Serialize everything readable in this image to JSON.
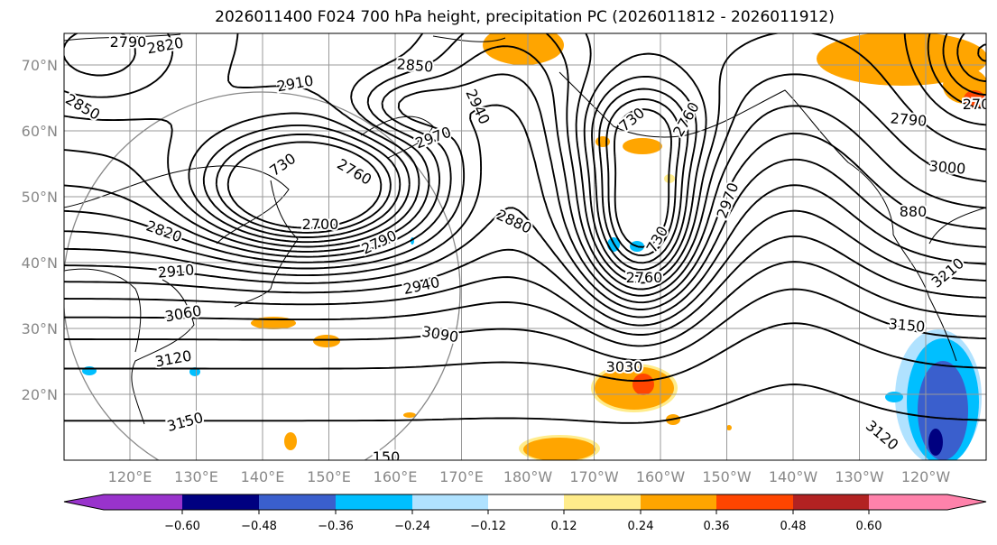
{
  "title": "2026011400 F024 700 hPa height, precipitation PC (2026011812 - 2026011912)",
  "lat_labels": [
    "70°N",
    "60°N",
    "50°N",
    "40°N",
    "30°N",
    "20°N"
  ],
  "lon_labels": [
    "120°E",
    "130°E",
    "140°E",
    "150°E",
    "160°E",
    "170°E",
    "180°W",
    "170°W",
    "160°W",
    "150°W",
    "140°W",
    "130°W",
    "120°W"
  ],
  "contour_labels": [
    "2790",
    "2820",
    "2850",
    "2850",
    "2910",
    "2940",
    "2970",
    "730",
    "2760",
    "2700",
    "2820",
    "2790",
    "2910",
    "2940",
    "3060",
    "3090",
    "3120",
    "3150",
    "150",
    "2880",
    "730",
    "2760",
    "2970",
    "730",
    "2760",
    "3030",
    "3150",
    "3120",
    "3210",
    "3000",
    "2790",
    "880",
    "270"
  ],
  "colorbar": {
    "colors": [
      "#9933cc",
      "#000080",
      "#3a5fcd",
      "#00bfff",
      "#b0e2ff",
      "#ffffff",
      "#ffec8b",
      "#ffa500",
      "#ff4500",
      "#b22222",
      "#ff82ab"
    ],
    "tick_labels": [
      "−0.60",
      "−0.48",
      "−0.36",
      "−0.24",
      "−0.12",
      "0.12",
      "0.24",
      "0.36",
      "0.48",
      "0.60"
    ]
  }
}
